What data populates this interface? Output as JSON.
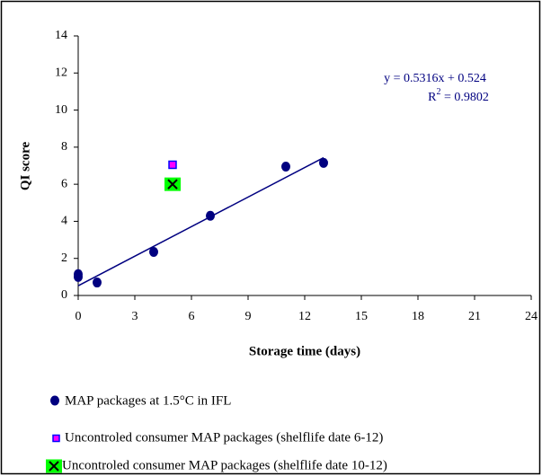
{
  "chart_data": {
    "type": "scatter",
    "xlabel": "Storage time (days)",
    "ylabel": "QI score",
    "xlim": [
      0,
      24
    ],
    "xticks": [
      0,
      3,
      6,
      9,
      12,
      15,
      18,
      21,
      24
    ],
    "ylim": [
      0,
      14
    ],
    "yticks": [
      0,
      2,
      4,
      6,
      8,
      10,
      12,
      14
    ],
    "series": [
      {
        "name": "MAP packages at 1.5°C in IFL",
        "color": "#000080",
        "marker": "circle",
        "x": [
          0,
          0,
          1,
          4,
          7,
          11,
          13
        ],
        "values": [
          1.15,
          1.0,
          0.7,
          2.35,
          4.3,
          6.95,
          7.15
        ]
      },
      {
        "name": "Uncontroled consumer MAP packages (shelflife date 6-12)",
        "color": "#ff00ff",
        "marker": "square",
        "x": [
          5
        ],
        "values": [
          7.05
        ]
      },
      {
        "name": "Uncontroled consumer MAP packages (shelflife date 10-12)",
        "color": "#00ff00",
        "marker": "square-x",
        "x": [
          5
        ],
        "values": [
          6.0
        ]
      }
    ],
    "trendline": {
      "slope": 0.5316,
      "intercept": 0.524,
      "color": "#000080"
    },
    "equation": "y = 0.5316x + 0.524",
    "r2_label": {
      "symbol": "R",
      "superscript": "2",
      "text": " = 0.9802"
    }
  }
}
